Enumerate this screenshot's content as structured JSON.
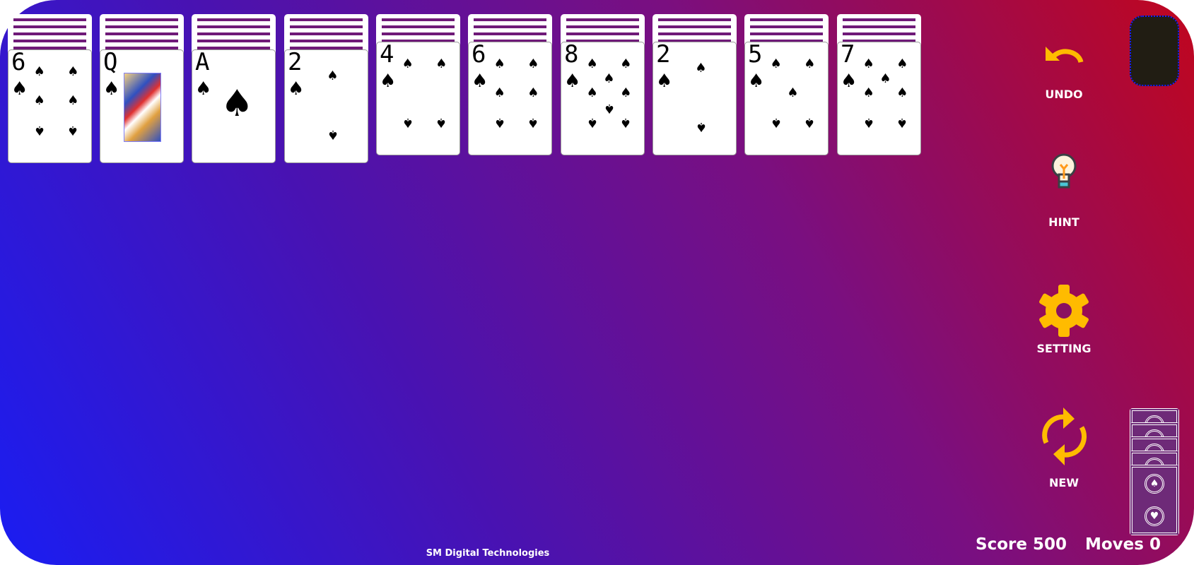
{
  "columns": [
    {
      "hidden": 5,
      "card": {
        "rank": "6",
        "suit": "♠"
      }
    },
    {
      "hidden": 5,
      "card": {
        "rank": "Q",
        "suit": "♠"
      }
    },
    {
      "hidden": 5,
      "card": {
        "rank": "A",
        "suit": "♠"
      }
    },
    {
      "hidden": 5,
      "card": {
        "rank": "2",
        "suit": "♠"
      }
    },
    {
      "hidden": 4,
      "card": {
        "rank": "4",
        "suit": "♠"
      }
    },
    {
      "hidden": 4,
      "card": {
        "rank": "6",
        "suit": "♠"
      }
    },
    {
      "hidden": 4,
      "card": {
        "rank": "8",
        "suit": "♠"
      }
    },
    {
      "hidden": 4,
      "card": {
        "rank": "2",
        "suit": "♠"
      }
    },
    {
      "hidden": 4,
      "card": {
        "rank": "5",
        "suit": "♠"
      }
    },
    {
      "hidden": 4,
      "card": {
        "rank": "7",
        "suit": "♠"
      }
    }
  ],
  "controls": {
    "undo": "UNDO",
    "hint": "HINT",
    "setting": "SETTING",
    "new": "NEW"
  },
  "stock": {
    "piles": 5
  },
  "status": {
    "score": "Score 500",
    "moves": "Moves 0"
  },
  "footer": "SM Digital Technologies",
  "colors": {
    "accent": "#ffbb00",
    "card_back": "#6f1a78",
    "bg_start": "#1a1df2",
    "bg_end": "#c0061e"
  }
}
